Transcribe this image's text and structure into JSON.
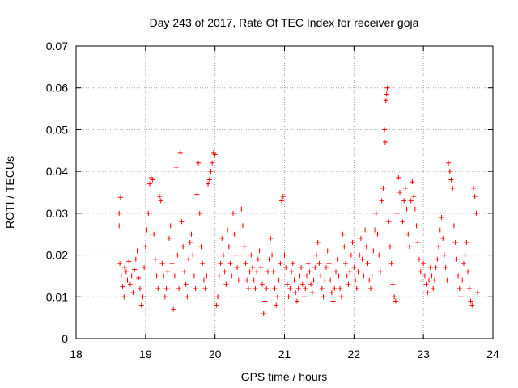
{
  "chart_data": {
    "type": "scatter",
    "title": "Day 243 of 2017, Rate Of TEC Index for receiver goja",
    "xlabel": "GPS time / hours",
    "ylabel": "ROTI / TECUs",
    "xlim": [
      18,
      24
    ],
    "ylim": [
      0,
      0.07
    ],
    "xticks": [
      18,
      19,
      20,
      21,
      22,
      23,
      24
    ],
    "yticks": [
      0,
      0.01,
      0.02,
      0.03,
      0.04,
      0.05,
      0.06,
      0.07
    ],
    "xtick_labels": [
      "18",
      "19",
      "20",
      "21",
      "22",
      "23",
      "24"
    ],
    "ytick_labels": [
      "0",
      "0.01",
      "0.02",
      "0.03",
      "0.04",
      "0.05",
      "0.06",
      "0.07"
    ],
    "grid": true,
    "marker": "+",
    "color": "#ff0000",
    "series": [
      {
        "name": "ROTI",
        "points": [
          [
            18.62,
            0.027
          ],
          [
            18.62,
            0.03
          ],
          [
            18.64,
            0.0338
          ],
          [
            18.63,
            0.018
          ],
          [
            18.65,
            0.015
          ],
          [
            18.67,
            0.0125
          ],
          [
            18.69,
            0.01
          ],
          [
            18.7,
            0.017
          ],
          [
            18.72,
            0.016
          ],
          [
            18.74,
            0.014
          ],
          [
            18.76,
            0.0185
          ],
          [
            18.78,
            0.013
          ],
          [
            18.8,
            0.015
          ],
          [
            18.82,
            0.011
          ],
          [
            18.84,
            0.0165
          ],
          [
            18.86,
            0.019
          ],
          [
            18.88,
            0.021
          ],
          [
            18.9,
            0.0145
          ],
          [
            18.92,
            0.012
          ],
          [
            18.94,
            0.008
          ],
          [
            18.96,
            0.01
          ],
          [
            18.98,
            0.017
          ],
          [
            19.0,
            0.022
          ],
          [
            19.02,
            0.026
          ],
          [
            19.04,
            0.03
          ],
          [
            19.06,
            0.037
          ],
          [
            19.08,
            0.0385
          ],
          [
            19.1,
            0.038
          ],
          [
            19.12,
            0.025
          ],
          [
            19.14,
            0.019
          ],
          [
            19.16,
            0.015
          ],
          [
            19.18,
            0.012
          ],
          [
            19.2,
            0.034
          ],
          [
            19.22,
            0.033
          ],
          [
            19.24,
            0.018
          ],
          [
            19.26,
            0.015
          ],
          [
            19.28,
            0.01
          ],
          [
            19.3,
            0.012
          ],
          [
            19.32,
            0.016
          ],
          [
            19.34,
            0.024
          ],
          [
            19.36,
            0.027
          ],
          [
            19.38,
            0.018
          ],
          [
            19.4,
            0.007
          ],
          [
            19.42,
            0.015
          ],
          [
            19.44,
            0.041
          ],
          [
            19.46,
            0.02
          ],
          [
            19.48,
            0.012
          ],
          [
            19.5,
            0.0445
          ],
          [
            19.52,
            0.028
          ],
          [
            19.54,
            0.022
          ],
          [
            19.56,
            0.016
          ],
          [
            19.58,
            0.013
          ],
          [
            19.6,
            0.01
          ],
          [
            19.62,
            0.019
          ],
          [
            19.64,
            0.023
          ],
          [
            19.66,
            0.025
          ],
          [
            19.68,
            0.02
          ],
          [
            19.7,
            0.015
          ],
          [
            19.72,
            0.012
          ],
          [
            19.74,
            0.0345
          ],
          [
            19.76,
            0.042
          ],
          [
            19.78,
            0.03
          ],
          [
            19.8,
            0.022
          ],
          [
            19.82,
            0.018
          ],
          [
            19.84,
            0.014
          ],
          [
            19.86,
            0.012
          ],
          [
            19.88,
            0.015
          ],
          [
            19.9,
            0.037
          ],
          [
            19.92,
            0.038
          ],
          [
            19.94,
            0.04
          ],
          [
            19.96,
            0.042
          ],
          [
            19.98,
            0.0445
          ],
          [
            20.0,
            0.044
          ],
          [
            20.02,
            0.008
          ],
          [
            20.04,
            0.01
          ],
          [
            20.06,
            0.015
          ],
          [
            20.08,
            0.018
          ],
          [
            20.1,
            0.024
          ],
          [
            20.12,
            0.02
          ],
          [
            20.14,
            0.016
          ],
          [
            20.16,
            0.013
          ],
          [
            20.18,
            0.026
          ],
          [
            20.2,
            0.022
          ],
          [
            20.22,
            0.018
          ],
          [
            20.24,
            0.015
          ],
          [
            20.26,
            0.03
          ],
          [
            20.28,
            0.025
          ],
          [
            20.3,
            0.02
          ],
          [
            20.32,
            0.017
          ],
          [
            20.34,
            0.014
          ],
          [
            20.36,
            0.026
          ],
          [
            20.38,
            0.031
          ],
          [
            20.4,
            0.027
          ],
          [
            20.42,
            0.022
          ],
          [
            20.44,
            0.018
          ],
          [
            20.46,
            0.014
          ],
          [
            20.48,
            0.012
          ],
          [
            20.5,
            0.016
          ],
          [
            20.52,
            0.02
          ],
          [
            20.54,
            0.017
          ],
          [
            20.56,
            0.014
          ],
          [
            20.58,
            0.012
          ],
          [
            20.6,
            0.016
          ],
          [
            20.62,
            0.019
          ],
          [
            20.64,
            0.021
          ],
          [
            20.66,
            0.017
          ],
          [
            20.68,
            0.013
          ],
          [
            20.7,
            0.006
          ],
          [
            20.72,
            0.009
          ],
          [
            20.74,
            0.012
          ],
          [
            20.76,
            0.016
          ],
          [
            20.78,
            0.019
          ],
          [
            20.8,
            0.024
          ],
          [
            20.82,
            0.02
          ],
          [
            20.84,
            0.016
          ],
          [
            20.86,
            0.012
          ],
          [
            20.88,
            0.008
          ],
          [
            20.9,
            0.01
          ],
          [
            20.92,
            0.014
          ],
          [
            20.94,
            0.018
          ],
          [
            20.96,
            0.033
          ],
          [
            20.98,
            0.034
          ],
          [
            21.0,
            0.02
          ],
          [
            21.02,
            0.017
          ],
          [
            21.04,
            0.013
          ],
          [
            21.06,
            0.01
          ],
          [
            21.08,
            0.012
          ],
          [
            21.1,
            0.016
          ],
          [
            21.12,
            0.018
          ],
          [
            21.14,
            0.014
          ],
          [
            21.16,
            0.011
          ],
          [
            21.18,
            0.009
          ],
          [
            21.2,
            0.012
          ],
          [
            21.22,
            0.015
          ],
          [
            21.24,
            0.017
          ],
          [
            21.26,
            0.013
          ],
          [
            21.28,
            0.01
          ],
          [
            21.3,
            0.012
          ],
          [
            21.32,
            0.015
          ],
          [
            21.34,
            0.018
          ],
          [
            21.36,
            0.016
          ],
          [
            21.38,
            0.013
          ],
          [
            21.4,
            0.011
          ],
          [
            21.42,
            0.014
          ],
          [
            21.44,
            0.017
          ],
          [
            21.46,
            0.02
          ],
          [
            21.48,
            0.023
          ],
          [
            21.5,
            0.018
          ],
          [
            21.52,
            0.015
          ],
          [
            21.54,
            0.012
          ],
          [
            21.56,
            0.01
          ],
          [
            21.58,
            0.014
          ],
          [
            21.6,
            0.017
          ],
          [
            21.62,
            0.021
          ],
          [
            21.64,
            0.018
          ],
          [
            21.66,
            0.014
          ],
          [
            21.68,
            0.011
          ],
          [
            21.7,
            0.009
          ],
          [
            21.72,
            0.012
          ],
          [
            21.74,
            0.016
          ],
          [
            21.76,
            0.019
          ],
          [
            21.78,
            0.015
          ],
          [
            21.8,
            0.012
          ],
          [
            21.82,
            0.01
          ],
          [
            21.84,
            0.025
          ],
          [
            21.86,
            0.022
          ],
          [
            21.88,
            0.018
          ],
          [
            21.9,
            0.015
          ],
          [
            21.92,
            0.013
          ],
          [
            21.94,
            0.016
          ],
          [
            21.96,
            0.02
          ],
          [
            21.98,
            0.023
          ],
          [
            22.0,
            0.017
          ],
          [
            22.02,
            0.014
          ],
          [
            22.04,
            0.012
          ],
          [
            22.06,
            0.016
          ],
          [
            22.08,
            0.02
          ],
          [
            22.1,
            0.024
          ],
          [
            22.12,
            0.019
          ],
          [
            22.14,
            0.015
          ],
          [
            22.16,
            0.026
          ],
          [
            22.18,
            0.022
          ],
          [
            22.2,
            0.018
          ],
          [
            22.22,
            0.014
          ],
          [
            22.24,
            0.012
          ],
          [
            22.26,
            0.015
          ],
          [
            22.28,
            0.021
          ],
          [
            22.3,
            0.026
          ],
          [
            22.32,
            0.03
          ],
          [
            22.34,
            0.025
          ],
          [
            22.36,
            0.02
          ],
          [
            22.38,
            0.016
          ],
          [
            22.4,
            0.033
          ],
          [
            22.42,
            0.036
          ],
          [
            22.44,
            0.05
          ],
          [
            22.45,
            0.047
          ],
          [
            22.46,
            0.057
          ],
          [
            22.47,
            0.0585
          ],
          [
            22.48,
            0.06
          ],
          [
            22.5,
            0.028
          ],
          [
            22.52,
            0.022
          ],
          [
            22.54,
            0.018
          ],
          [
            22.56,
            0.013
          ],
          [
            22.58,
            0.01
          ],
          [
            22.6,
            0.009
          ],
          [
            22.62,
            0.03
          ],
          [
            22.64,
            0.0385
          ],
          [
            22.66,
            0.035
          ],
          [
            22.68,
            0.032
          ],
          [
            22.7,
            0.028
          ],
          [
            22.72,
            0.033
          ],
          [
            22.74,
            0.036
          ],
          [
            22.76,
            0.031
          ],
          [
            22.78,
            0.025
          ],
          [
            22.8,
            0.022
          ],
          [
            22.82,
            0.033
          ],
          [
            22.84,
            0.0375
          ],
          [
            22.86,
            0.034
          ],
          [
            22.88,
            0.031
          ],
          [
            22.9,
            0.027
          ],
          [
            22.92,
            0.023
          ],
          [
            22.94,
            0.019
          ],
          [
            22.96,
            0.016
          ],
          [
            22.98,
            0.014
          ],
          [
            23.0,
            0.018
          ],
          [
            23.02,
            0.015
          ],
          [
            23.04,
            0.013
          ],
          [
            23.06,
            0.011
          ],
          [
            23.08,
            0.014
          ],
          [
            23.1,
            0.017
          ],
          [
            23.12,
            0.015
          ],
          [
            23.14,
            0.012
          ],
          [
            23.16,
            0.014
          ],
          [
            23.18,
            0.017
          ],
          [
            23.2,
            0.019
          ],
          [
            23.22,
            0.022
          ],
          [
            23.24,
            0.026
          ],
          [
            23.26,
            0.029
          ],
          [
            23.28,
            0.024
          ],
          [
            23.3,
            0.02
          ],
          [
            23.32,
            0.017
          ],
          [
            23.34,
            0.014
          ],
          [
            23.36,
            0.042
          ],
          [
            23.38,
            0.04
          ],
          [
            23.4,
            0.038
          ],
          [
            23.42,
            0.036
          ],
          [
            23.44,
            0.027
          ],
          [
            23.46,
            0.023
          ],
          [
            23.48,
            0.019
          ],
          [
            23.5,
            0.015
          ],
          [
            23.52,
            0.012
          ],
          [
            23.54,
            0.01
          ],
          [
            23.56,
            0.014
          ],
          [
            23.58,
            0.018
          ],
          [
            23.6,
            0.02
          ],
          [
            23.62,
            0.023
          ],
          [
            23.64,
            0.016
          ],
          [
            23.66,
            0.012
          ],
          [
            23.68,
            0.009
          ],
          [
            23.7,
            0.008
          ],
          [
            23.72,
            0.036
          ],
          [
            23.74,
            0.034
          ],
          [
            23.76,
            0.03
          ],
          [
            23.78,
            0.011
          ]
        ]
      }
    ]
  }
}
